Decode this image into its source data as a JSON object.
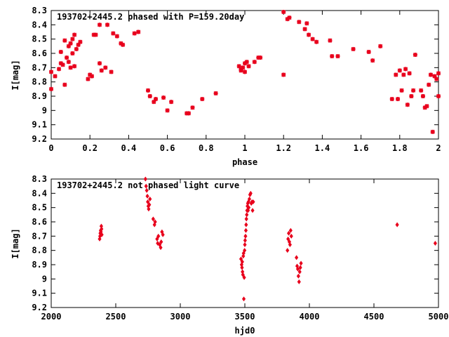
{
  "chart_data": [
    {
      "type": "scatter",
      "title": "193702+2445.2 phased with P=159.20day",
      "xlabel": "phase",
      "ylabel": "I[mag]",
      "xlim": [
        0,
        2
      ],
      "ylim": [
        9.2,
        8.3
      ],
      "y_inverted": true,
      "x_ticks": [
        0,
        0.2,
        0.4,
        0.6,
        0.8,
        1,
        1.2,
        1.4,
        1.6,
        1.8,
        2
      ],
      "x_tick_labels": [
        "0",
        "0.2",
        "0.4",
        "0.6",
        "0.8",
        "1",
        "1.2",
        "1.4",
        "1.6",
        "1.8",
        "2"
      ],
      "y_ticks": [
        8.3,
        8.4,
        8.5,
        8.6,
        8.7,
        8.8,
        8.9,
        9,
        9.1,
        9.2
      ],
      "y_tick_labels": [
        "8.3",
        "8.4",
        "8.5",
        "8.6",
        "8.7",
        "8.8",
        "8.9",
        "9",
        "9.1",
        "9.2"
      ],
      "grid": false,
      "marker": "star",
      "color": "#e8001c",
      "points": [
        [
          0.0,
          8.73
        ],
        [
          0.0,
          8.85
        ],
        [
          0.02,
          8.76
        ],
        [
          0.04,
          8.71
        ],
        [
          0.05,
          8.67
        ],
        [
          0.05,
          8.59
        ],
        [
          0.06,
          8.68
        ],
        [
          0.07,
          8.82
        ],
        [
          0.07,
          8.51
        ],
        [
          0.08,
          8.63
        ],
        [
          0.09,
          8.55
        ],
        [
          0.09,
          8.66
        ],
        [
          0.1,
          8.53
        ],
        [
          0.1,
          8.7
        ],
        [
          0.11,
          8.6
        ],
        [
          0.11,
          8.5
        ],
        [
          0.12,
          8.69
        ],
        [
          0.12,
          8.47
        ],
        [
          0.13,
          8.57
        ],
        [
          0.14,
          8.54
        ],
        [
          0.15,
          8.52
        ],
        [
          0.19,
          8.78
        ],
        [
          0.2,
          8.75
        ],
        [
          0.21,
          8.76
        ],
        [
          0.22,
          8.47
        ],
        [
          0.23,
          8.47
        ],
        [
          0.25,
          8.67
        ],
        [
          0.25,
          8.4
        ],
        [
          0.26,
          8.72
        ],
        [
          0.28,
          8.7
        ],
        [
          0.29,
          8.4
        ],
        [
          0.31,
          8.73
        ],
        [
          0.32,
          8.46
        ],
        [
          0.34,
          8.48
        ],
        [
          0.36,
          8.53
        ],
        [
          0.37,
          8.54
        ],
        [
          0.43,
          8.46
        ],
        [
          0.45,
          8.45
        ],
        [
          0.5,
          8.86
        ],
        [
          0.51,
          8.9
        ],
        [
          0.53,
          8.94
        ],
        [
          0.54,
          8.92
        ],
        [
          0.58,
          8.91
        ],
        [
          0.6,
          9.0
        ],
        [
          0.62,
          8.94
        ],
        [
          0.7,
          9.02
        ],
        [
          0.71,
          9.02
        ],
        [
          0.73,
          8.98
        ],
        [
          0.78,
          8.92
        ],
        [
          0.85,
          8.88
        ],
        [
          0.97,
          8.69
        ],
        [
          0.98,
          8.71
        ],
        [
          0.98,
          8.72
        ],
        [
          0.99,
          8.7
        ],
        [
          1.0,
          8.73
        ],
        [
          1.0,
          8.67
        ],
        [
          1.01,
          8.66
        ],
        [
          1.02,
          8.69
        ],
        [
          1.05,
          8.66
        ],
        [
          1.07,
          8.63
        ],
        [
          1.08,
          8.63
        ],
        [
          1.2,
          8.75
        ],
        [
          1.2,
          8.31
        ],
        [
          1.22,
          8.36
        ],
        [
          1.23,
          8.35
        ],
        [
          1.28,
          8.38
        ],
        [
          1.31,
          8.43
        ],
        [
          1.32,
          8.39
        ],
        [
          1.33,
          8.47
        ],
        [
          1.35,
          8.5
        ],
        [
          1.37,
          8.52
        ],
        [
          1.44,
          8.51
        ],
        [
          1.45,
          8.62
        ],
        [
          1.48,
          8.62
        ],
        [
          1.56,
          8.57
        ],
        [
          1.64,
          8.59
        ],
        [
          1.66,
          8.65
        ],
        [
          1.7,
          8.55
        ],
        [
          1.76,
          8.92
        ],
        [
          1.78,
          8.75
        ],
        [
          1.79,
          8.92
        ],
        [
          1.8,
          8.72
        ],
        [
          1.81,
          8.86
        ],
        [
          1.82,
          8.75
        ],
        [
          1.83,
          8.71
        ],
        [
          1.84,
          8.96
        ],
        [
          1.85,
          8.74
        ],
        [
          1.86,
          8.9
        ],
        [
          1.87,
          8.86
        ],
        [
          1.88,
          8.61
        ],
        [
          1.91,
          8.86
        ],
        [
          1.92,
          8.9
        ],
        [
          1.93,
          8.98
        ],
        [
          1.94,
          8.97
        ],
        [
          1.95,
          8.82
        ],
        [
          1.96,
          8.75
        ],
        [
          1.97,
          9.15
        ],
        [
          1.98,
          8.76
        ],
        [
          1.99,
          8.78
        ],
        [
          2.0,
          8.74
        ],
        [
          2.0,
          8.9
        ]
      ]
    },
    {
      "type": "scatter",
      "title": "193702+2445.2 not phased light curve",
      "xlabel": "hjd0",
      "ylabel": "I[mag]",
      "xlim": [
        2000,
        5000
      ],
      "ylim": [
        9.2,
        8.3
      ],
      "y_inverted": true,
      "x_ticks": [
        2000,
        2500,
        3000,
        3500,
        4000,
        4500,
        5000
      ],
      "x_tick_labels": [
        "2000",
        "2500",
        "3000",
        "3500",
        "4000",
        "4500",
        "5000"
      ],
      "y_ticks": [
        8.3,
        8.4,
        8.5,
        8.6,
        8.7,
        8.8,
        8.9,
        9,
        9.1,
        9.2
      ],
      "y_tick_labels": [
        "8.3",
        "8.4",
        "8.5",
        "8.6",
        "8.7",
        "8.8",
        "8.9",
        "9",
        "9.1",
        "9.2"
      ],
      "grid": false,
      "marker": "diamond",
      "color": "#e8001c",
      "points": [
        [
          2375,
          8.72
        ],
        [
          2378,
          8.7
        ],
        [
          2380,
          8.68
        ],
        [
          2383,
          8.66
        ],
        [
          2385,
          8.67
        ],
        [
          2388,
          8.63
        ],
        [
          2390,
          8.65
        ],
        [
          2392,
          8.69
        ],
        [
          2730,
          8.3
        ],
        [
          2735,
          8.35
        ],
        [
          2740,
          8.38
        ],
        [
          2745,
          8.42
        ],
        [
          2748,
          8.46
        ],
        [
          2752,
          8.49
        ],
        [
          2755,
          8.51
        ],
        [
          2760,
          8.48
        ],
        [
          2765,
          8.44
        ],
        [
          2790,
          8.58
        ],
        [
          2800,
          8.62
        ],
        [
          2805,
          8.6
        ],
        [
          2820,
          8.72
        ],
        [
          2825,
          8.75
        ],
        [
          2830,
          8.7
        ],
        [
          2840,
          8.76
        ],
        [
          2848,
          8.78
        ],
        [
          2852,
          8.74
        ],
        [
          2858,
          8.67
        ],
        [
          2865,
          8.69
        ],
        [
          3470,
          8.86
        ],
        [
          3475,
          8.9
        ],
        [
          3478,
          8.92
        ],
        [
          3480,
          8.88
        ],
        [
          3482,
          8.95
        ],
        [
          3485,
          8.97
        ],
        [
          3488,
          8.84
        ],
        [
          3490,
          8.82
        ],
        [
          3492,
          9.14
        ],
        [
          3495,
          8.99
        ],
        [
          3498,
          8.8
        ],
        [
          3500,
          8.76
        ],
        [
          3502,
          8.73
        ],
        [
          3505,
          8.7
        ],
        [
          3508,
          8.66
        ],
        [
          3510,
          8.62
        ],
        [
          3512,
          8.58
        ],
        [
          3515,
          8.55
        ],
        [
          3517,
          8.52
        ],
        [
          3520,
          8.49
        ],
        [
          3523,
          8.47
        ],
        [
          3525,
          8.52
        ],
        [
          3528,
          8.46
        ],
        [
          3530,
          8.5
        ],
        [
          3535,
          8.44
        ],
        [
          3540,
          8.41
        ],
        [
          3545,
          8.4
        ],
        [
          3550,
          8.47
        ],
        [
          3555,
          8.46
        ],
        [
          3560,
          8.52
        ],
        [
          3565,
          8.46
        ],
        [
          3830,
          8.8
        ],
        [
          3835,
          8.72
        ],
        [
          3840,
          8.68
        ],
        [
          3845,
          8.74
        ],
        [
          3850,
          8.76
        ],
        [
          3855,
          8.66
        ],
        [
          3860,
          8.7
        ],
        [
          3900,
          8.85
        ],
        [
          3905,
          8.91
        ],
        [
          3910,
          8.93
        ],
        [
          3915,
          8.98
        ],
        [
          3920,
          9.02
        ],
        [
          3925,
          8.95
        ],
        [
          3930,
          8.92
        ],
        [
          3935,
          8.89
        ],
        [
          4680,
          8.62
        ],
        [
          4975,
          8.75
        ]
      ]
    }
  ]
}
